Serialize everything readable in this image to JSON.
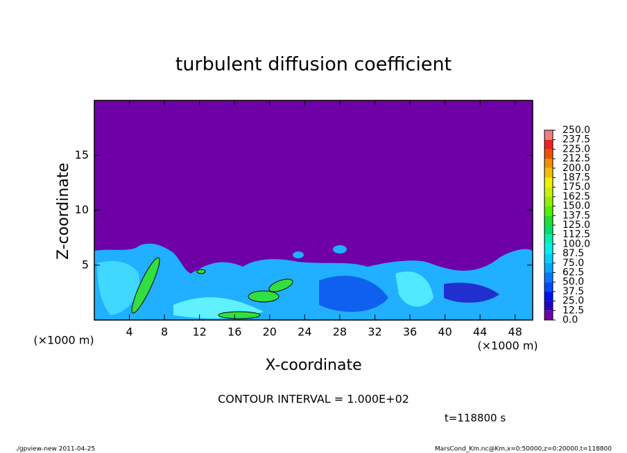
{
  "chart_data": {
    "type": "contour",
    "title": "turbulent diffusion coefficient",
    "x_label": "X-coordinate",
    "y_label": "Z-coordinate",
    "x_unit": "(×1000 m)",
    "y_unit": "(×1000 m)",
    "xlim": [
      0,
      50
    ],
    "xticks": [
      4,
      8,
      12,
      16,
      20,
      24,
      28,
      32,
      36,
      40,
      44,
      48
    ],
    "ylim": [
      0,
      20
    ],
    "yticks": [
      5,
      10,
      15
    ],
    "colorbar_ticks": [
      {
        "value": 0,
        "label": "0.0"
      },
      {
        "value": 12.5,
        "label": "12.5"
      },
      {
        "value": 25,
        "label": "25.0"
      },
      {
        "value": 37.5,
        "label": "37.5"
      },
      {
        "value": 50,
        "label": "50.0"
      },
      {
        "value": 62.5,
        "label": "62.5"
      },
      {
        "value": 75,
        "label": "75.0"
      },
      {
        "value": 87.5,
        "label": "87.5"
      },
      {
        "value": 100,
        "label": "100.0"
      },
      {
        "value": 112.5,
        "label": "112.5"
      },
      {
        "value": 125,
        "label": "125.0"
      },
      {
        "value": 137.5,
        "label": "137.5"
      },
      {
        "value": 150,
        "label": "150.0"
      },
      {
        "value": 162.5,
        "label": "162.5"
      },
      {
        "value": 175,
        "label": "175.0"
      },
      {
        "value": 187.5,
        "label": "187.5"
      },
      {
        "value": 200,
        "label": "200.0"
      },
      {
        "value": 212.5,
        "label": "212.5"
      },
      {
        "value": 225,
        "label": "225.0"
      },
      {
        "value": 237.5,
        "label": "237.5"
      },
      {
        "value": 250,
        "label": "250.0"
      }
    ],
    "colorbar_colors": [
      "#6e00a6",
      "#2a00c0",
      "#0010f0",
      "#0048ff",
      "#0078ff",
      "#00a8ff",
      "#00d0ff",
      "#00f0e8",
      "#00f0b0",
      "#00e070",
      "#20e030",
      "#50f000",
      "#90f000",
      "#c8f000",
      "#f0f000",
      "#f0c000",
      "#f09000",
      "#f05000",
      "#f02020",
      "#f08080"
    ],
    "contour_interval": "CONTOUR INTERVAL = 1.000E+02",
    "time_label": "t=118800 s",
    "footer_left": "./gpview-new   2011-04-25",
    "footer_right": "MarsCond_Km.nc@Km,x=0:50000,z=0:20000,t=118800"
  }
}
